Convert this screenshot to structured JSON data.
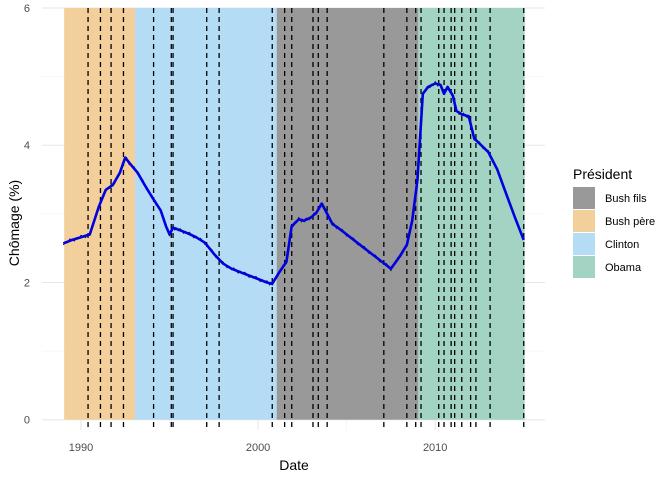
{
  "chart_data": {
    "type": "line",
    "title": "",
    "xlabel": "Date",
    "ylabel": "Chômage (%)",
    "xlim": [
      1987.8,
      2016.2
    ],
    "ylim": [
      -0.15,
      6.0
    ],
    "x_ticks": [
      1990,
      2000,
      2010
    ],
    "x_tick_labels": [
      "1990",
      "2000",
      "2010"
    ],
    "y_ticks": [
      0,
      2,
      4,
      6
    ],
    "y_tick_labels": [
      "0",
      "2",
      "4",
      "6"
    ],
    "grid": true,
    "legend": {
      "title": "Président",
      "placement": "right",
      "entries": [
        {
          "label": "Bush fils",
          "color": "#999999"
        },
        {
          "label": "Bush père",
          "color": "#f2cf9b"
        },
        {
          "label": "Clinton",
          "color": "#b5dcf5"
        },
        {
          "label": "Obama",
          "color": "#a3d3c2"
        }
      ]
    },
    "presidencies": [
      {
        "name": "Bush père",
        "start": 1989.05,
        "end": 1993.05,
        "color": "#f2cf9b"
      },
      {
        "name": "Clinton",
        "start": 1993.05,
        "end": 2001.05,
        "color": "#b5dcf5"
      },
      {
        "name": "Bush fils",
        "start": 2001.05,
        "end": 2009.05,
        "color": "#999999"
      },
      {
        "name": "Obama",
        "start": 2009.05,
        "end": 2015.05,
        "color": "#a3d3c2"
      }
    ],
    "vlines": [
      1990.4,
      1991.1,
      1991.7,
      1992.4,
      1994.1,
      1995.1,
      1995.2,
      1997.1,
      1997.8,
      2000.8,
      2001.5,
      2001.9,
      2003.1,
      2003.4,
      2003.9,
      2007.1,
      2008.4,
      2008.9,
      2009.2,
      2010.2,
      2010.5,
      2010.9,
      2011.1,
      2011.5,
      2012.0,
      2012.3,
      2013.1,
      2015.0
    ],
    "series": [
      {
        "color": "#0000e0",
        "x": [
          1989.0,
          1989.5,
          1990.0,
          1990.5,
          1991.0,
          1991.4,
          1991.8,
          1992.2,
          1992.5,
          1992.8,
          1993.2,
          1993.6,
          1994.0,
          1994.5,
          1994.8,
          1995.0,
          1995.2,
          1995.6,
          1996.0,
          1996.5,
          1997.0,
          1997.5,
          1998.0,
          1998.5,
          1999.0,
          1999.5,
          2000.0,
          2000.5,
          2000.8,
          2001.2,
          2001.6,
          2001.9,
          2002.3,
          2002.6,
          2003.0,
          2003.3,
          2003.6,
          2003.9,
          2004.2,
          2004.5,
          2005.0,
          2005.5,
          2006.0,
          2006.5,
          2007.0,
          2007.5,
          2008.0,
          2008.4,
          2008.7,
          2009.0,
          2009.3,
          2009.6,
          2010.0,
          2010.3,
          2010.5,
          2010.7,
          2011.0,
          2011.2,
          2011.5,
          2011.9,
          2012.2,
          2012.6,
          2013.0,
          2013.5,
          2014.0,
          2014.5,
          2015.0
        ],
        "values": [
          2.57,
          2.62,
          2.66,
          2.7,
          3.1,
          3.35,
          3.42,
          3.6,
          3.82,
          3.72,
          3.6,
          3.42,
          3.25,
          3.05,
          2.82,
          2.7,
          2.8,
          2.76,
          2.72,
          2.66,
          2.58,
          2.42,
          2.28,
          2.2,
          2.15,
          2.1,
          2.05,
          2.0,
          1.98,
          2.15,
          2.3,
          2.82,
          2.92,
          2.9,
          2.95,
          3.02,
          3.15,
          3.0,
          2.85,
          2.8,
          2.7,
          2.6,
          2.5,
          2.4,
          2.3,
          2.2,
          2.38,
          2.55,
          2.9,
          3.5,
          4.75,
          4.85,
          4.9,
          4.88,
          4.75,
          4.85,
          4.72,
          4.5,
          4.45,
          4.42,
          4.1,
          4.0,
          3.9,
          3.65,
          3.3,
          2.95,
          2.62
        ]
      }
    ]
  }
}
